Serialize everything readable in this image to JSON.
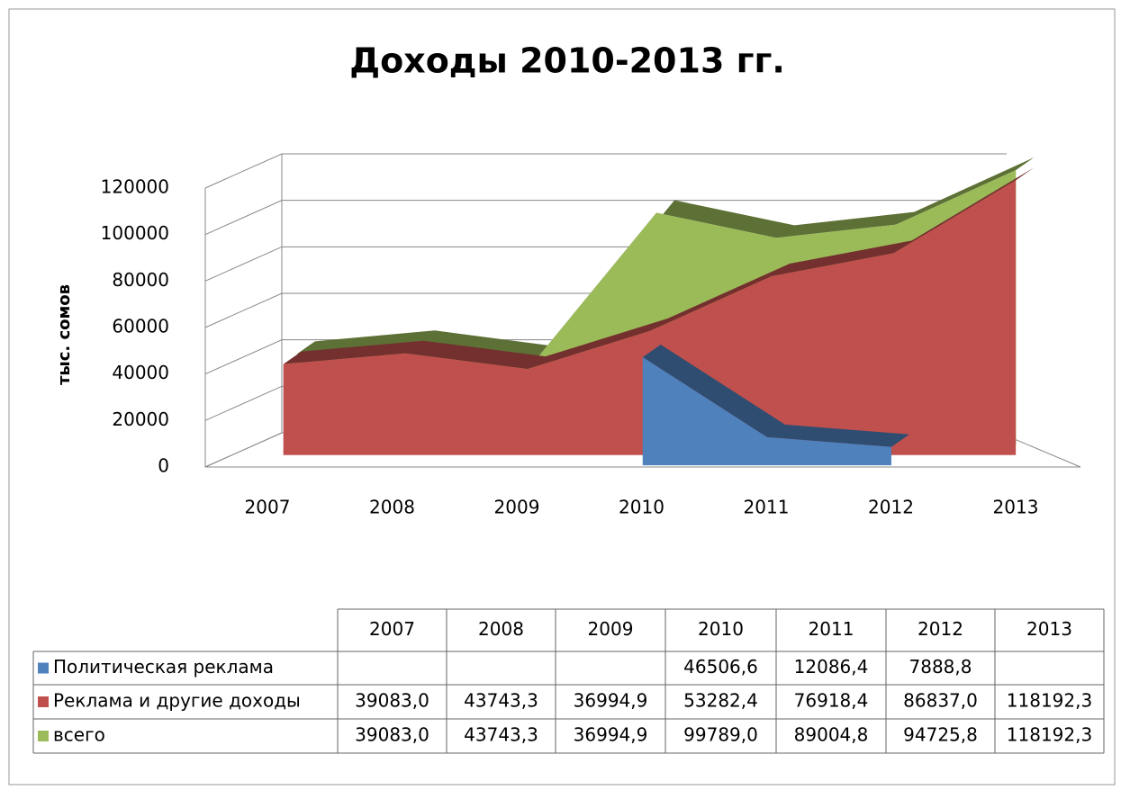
{
  "chart_data": {
    "type": "area",
    "title": "Доходы 2010-2013 гг.",
    "y_label": "тыс. сомов",
    "categories": [
      "2007",
      "2008",
      "2009",
      "2010",
      "2011",
      "2012",
      "2013"
    ],
    "ylim": [
      0,
      120000
    ],
    "yticks": [
      0,
      20000,
      40000,
      60000,
      80000,
      100000,
      120000
    ],
    "grid": true,
    "series": [
      {
        "name": "Политическая реклама",
        "color": "#4f81bd",
        "values": [
          null,
          null,
          null,
          46506.6,
          12086.4,
          7888.8,
          null
        ],
        "value_labels": [
          null,
          null,
          null,
          "46506,6",
          "12086,4",
          "7888,8",
          null
        ]
      },
      {
        "name": "Реклама и другие доходы",
        "color": "#c0504d",
        "values": [
          39083.0,
          43743.3,
          36994.9,
          53282.4,
          76918.4,
          86837.0,
          118192.3
        ],
        "value_labels": [
          "39083,0",
          "43743,3",
          "36994,9",
          "53282,4",
          "76918,4",
          "86837,0",
          "118192,3"
        ]
      },
      {
        "name": "всего",
        "color": "#9bbb59",
        "values": [
          39083.0,
          43743.3,
          36994.9,
          99789.0,
          89004.8,
          94725.8,
          118192.3
        ],
        "value_labels": [
          "39083,0",
          "43743,3",
          "36994,9",
          "99789,0",
          "89004,8",
          "94725,8",
          "118192,3"
        ]
      }
    ]
  }
}
